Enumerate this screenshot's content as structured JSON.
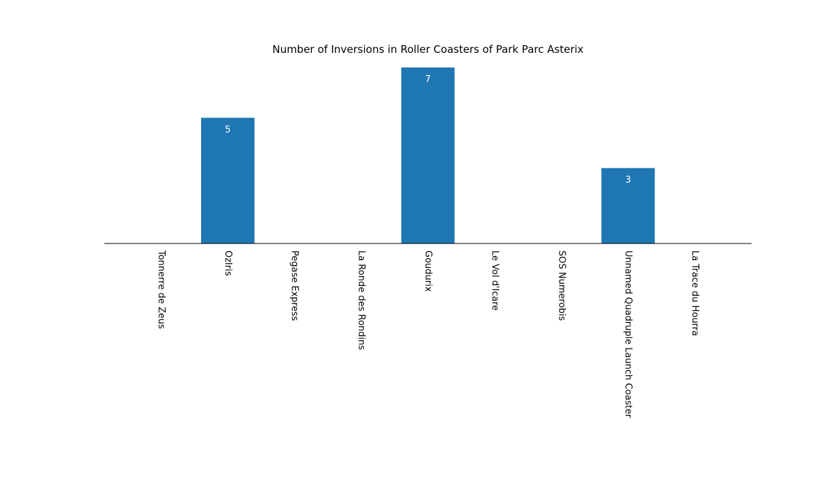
{
  "chart_data": {
    "type": "bar",
    "title": "Number of Inversions in Roller Coasters of Park Parc Asterix",
    "xlabel": "",
    "ylabel": "",
    "categories": [
      "Tonnerre de Zeus",
      "OzIris",
      "Pegase Express",
      "La Ronde des Rondins",
      "Goudurix",
      "Le Vol d'Icare",
      "SOS Numerobis",
      "Unnamed Quadruple Launch Coaster",
      "La Trace du Hourra"
    ],
    "values": [
      0,
      5,
      0,
      0,
      7,
      0,
      0,
      3,
      0
    ],
    "data_labels": [
      "",
      "5",
      "",
      "",
      "7",
      "",
      "",
      "3",
      ""
    ],
    "ylim": [
      0,
      7
    ],
    "bar_color": "#1f77b4",
    "grid": false,
    "tick_label_rotation": "vertical"
  }
}
